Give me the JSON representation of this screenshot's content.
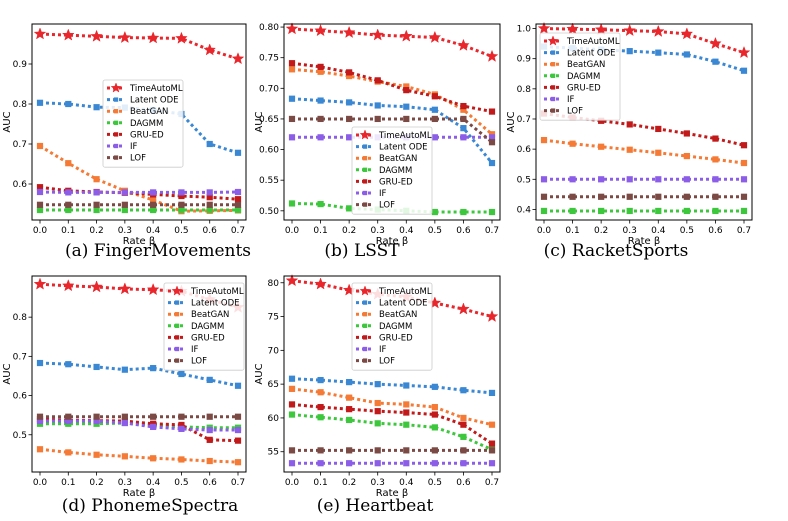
{
  "figure": {
    "x_values": [
      0.0,
      0.1,
      0.2,
      0.3,
      0.4,
      0.5,
      0.6,
      0.7
    ],
    "x_tick_labels": [
      "0.0",
      "0.1",
      "0.2",
      "0.3",
      "0.4",
      "0.5",
      "0.6",
      "0.7"
    ],
    "xlabel": "Rate β",
    "ylabel": "AUC",
    "colors": {
      "TimeAutoML": "#e8262b",
      "Latent ODE": "#3a88d4",
      "BeatGAN": "#f47a35",
      "DAGMM": "#3dc73d",
      "GRU-ED": "#c21a1a",
      "IF": "#8c5ee8",
      "LOF": "#7b4a45"
    }
  },
  "chart_data": [
    {
      "type": "line",
      "caption": "(a) FingerMovements",
      "xlabel": "Rate β",
      "ylabel": "AUC",
      "ylim": [
        0.51,
        1.0
      ],
      "yticks": [
        0.6,
        0.7,
        0.8,
        0.9
      ],
      "ytick_labels": [
        "0.6",
        "0.7",
        "0.8",
        "0.9"
      ],
      "legend": [
        "TimeAutoML",
        "Latent ODE",
        "BeatGAN",
        "DAGMM",
        "GRU-ED",
        "IF",
        "LOF"
      ],
      "legend_loc": "center",
      "series": [
        {
          "name": "TimeAutoML",
          "values": [
            0.975,
            0.972,
            0.969,
            0.966,
            0.965,
            0.964,
            0.935,
            0.913
          ]
        },
        {
          "name": "Latent ODE",
          "values": [
            0.803,
            0.8,
            0.792,
            0.791,
            0.785,
            0.775,
            0.7,
            0.678
          ]
        },
        {
          "name": "BeatGAN",
          "values": [
            0.695,
            0.652,
            0.612,
            0.583,
            0.56,
            0.532,
            0.533,
            0.534
          ]
        },
        {
          "name": "DAGMM",
          "values": [
            0.535,
            0.535,
            0.535,
            0.535,
            0.535,
            0.535,
            0.535,
            0.535
          ]
        },
        {
          "name": "GRU-ED",
          "values": [
            0.592,
            0.583,
            0.58,
            0.578,
            0.574,
            0.57,
            0.567,
            0.562
          ]
        },
        {
          "name": "IF",
          "values": [
            0.58,
            0.579,
            0.579,
            0.579,
            0.579,
            0.579,
            0.579,
            0.58
          ]
        },
        {
          "name": "LOF",
          "values": [
            0.548,
            0.548,
            0.548,
            0.548,
            0.548,
            0.548,
            0.548,
            0.548
          ]
        }
      ]
    },
    {
      "type": "line",
      "caption": "(b) LSST",
      "xlabel": "Rate β",
      "ylabel": "AUC",
      "ylim": [
        0.485,
        0.805
      ],
      "yticks": [
        0.5,
        0.55,
        0.6,
        0.65,
        0.7,
        0.75,
        0.8
      ],
      "ytick_labels": [
        "0.50",
        "0.55",
        "0.60",
        "0.65",
        "0.70",
        "0.75",
        "0.80"
      ],
      "legend": [
        "TimeAutoML",
        "Latent ODE",
        "BeatGAN",
        "DAGMM",
        "GRU-ED",
        "IF",
        "LOF"
      ],
      "legend_loc": "lower center",
      "series": [
        {
          "name": "TimeAutoML",
          "values": [
            0.797,
            0.794,
            0.791,
            0.787,
            0.785,
            0.783,
            0.77,
            0.752
          ]
        },
        {
          "name": "Latent ODE",
          "values": [
            0.683,
            0.68,
            0.677,
            0.672,
            0.67,
            0.665,
            0.635,
            0.578
          ]
        },
        {
          "name": "BeatGAN",
          "values": [
            0.731,
            0.727,
            0.72,
            0.711,
            0.703,
            0.69,
            0.665,
            0.625
          ]
        },
        {
          "name": "DAGMM",
          "values": [
            0.512,
            0.511,
            0.504,
            0.502,
            0.5,
            0.498,
            0.498,
            0.498
          ]
        },
        {
          "name": "GRU-ED",
          "values": [
            0.741,
            0.735,
            0.726,
            0.713,
            0.697,
            0.687,
            0.671,
            0.662
          ]
        },
        {
          "name": "IF",
          "values": [
            0.62,
            0.62,
            0.62,
            0.62,
            0.62,
            0.62,
            0.62,
            0.62
          ]
        },
        {
          "name": "LOF",
          "values": [
            0.65,
            0.65,
            0.65,
            0.65,
            0.65,
            0.65,
            0.65,
            0.612
          ]
        }
      ]
    },
    {
      "type": "line",
      "caption": "(c) RacketSports",
      "xlabel": "Rate β",
      "ylabel": "AUC",
      "ylim": [
        0.365,
        1.015
      ],
      "yticks": [
        0.4,
        0.5,
        0.6,
        0.7,
        0.8,
        0.9,
        1.0
      ],
      "ytick_labels": [
        "0.4",
        "0.5",
        "0.6",
        "0.7",
        "0.8",
        "0.9",
        "1.0"
      ],
      "legend": [
        "TimeAutoML",
        "Latent ODE",
        "BeatGAN",
        "DAGMM",
        "GRU-ED",
        "IF",
        "LOF"
      ],
      "legend_loc": "upper left",
      "series": [
        {
          "name": "TimeAutoML",
          "values": [
            1.0,
            0.998,
            0.996,
            0.993,
            0.99,
            0.982,
            0.95,
            0.92
          ]
        },
        {
          "name": "Latent ODE",
          "values": [
            0.94,
            0.935,
            0.93,
            0.925,
            0.92,
            0.914,
            0.89,
            0.86
          ]
        },
        {
          "name": "BeatGAN",
          "values": [
            0.63,
            0.618,
            0.608,
            0.598,
            0.588,
            0.577,
            0.566,
            0.554
          ]
        },
        {
          "name": "DAGMM",
          "values": [
            0.395,
            0.395,
            0.395,
            0.395,
            0.395,
            0.395,
            0.395,
            0.395
          ]
        },
        {
          "name": "GRU-ED",
          "values": [
            0.718,
            0.705,
            0.694,
            0.682,
            0.667,
            0.652,
            0.635,
            0.613
          ]
        },
        {
          "name": "IF",
          "values": [
            0.5,
            0.5,
            0.5,
            0.5,
            0.5,
            0.5,
            0.5,
            0.5
          ]
        },
        {
          "name": "LOF",
          "values": [
            0.442,
            0.442,
            0.442,
            0.442,
            0.442,
            0.442,
            0.442,
            0.442
          ]
        }
      ]
    },
    {
      "type": "line",
      "caption": "(d) PhonemeSpectra",
      "xlabel": "Rate β",
      "ylabel": "AUC",
      "ylim": [
        0.405,
        0.905
      ],
      "yticks": [
        0.5,
        0.6,
        0.7,
        0.8
      ],
      "ytick_labels": [
        "0.5",
        "0.6",
        "0.7",
        "0.8"
      ],
      "legend": [
        "TimeAutoML",
        "Latent ODE",
        "BeatGAN",
        "DAGMM",
        "GRU-ED",
        "IF",
        "LOF"
      ],
      "legend_loc": "right",
      "series": [
        {
          "name": "TimeAutoML",
          "values": [
            0.884,
            0.88,
            0.877,
            0.872,
            0.87,
            0.866,
            0.845,
            0.825
          ]
        },
        {
          "name": "Latent ODE",
          "values": [
            0.683,
            0.68,
            0.673,
            0.666,
            0.67,
            0.655,
            0.64,
            0.625
          ]
        },
        {
          "name": "BeatGAN",
          "values": [
            0.463,
            0.455,
            0.449,
            0.445,
            0.44,
            0.437,
            0.433,
            0.43
          ]
        },
        {
          "name": "DAGMM",
          "values": [
            0.528,
            0.528,
            0.528,
            0.53,
            0.525,
            0.52,
            0.518,
            0.518
          ]
        },
        {
          "name": "GRU-ED",
          "values": [
            0.54,
            0.537,
            0.536,
            0.535,
            0.528,
            0.525,
            0.487,
            0.485
          ]
        },
        {
          "name": "IF",
          "values": [
            0.535,
            0.535,
            0.535,
            0.53,
            0.52,
            0.515,
            0.512,
            0.512
          ]
        },
        {
          "name": "LOF",
          "values": [
            0.546,
            0.546,
            0.546,
            0.546,
            0.546,
            0.546,
            0.546,
            0.546
          ]
        }
      ]
    },
    {
      "type": "line",
      "caption": "(e) Heartbeat",
      "xlabel": "Rate β",
      "ylabel": "AUC",
      "ylim": [
        0.52,
        0.81
      ],
      "yticks": [
        0.55,
        0.6,
        0.65,
        0.7,
        0.75,
        0.8
      ],
      "ytick_labels": [
        "55",
        "60",
        "65",
        "70",
        "75",
        "80"
      ],
      "legend": [
        "TimeAutoML",
        "Latent ODE",
        "BeatGAN",
        "DAGMM",
        "GRU-ED",
        "IF",
        "LOF"
      ],
      "legend_loc": "upper right",
      "series": [
        {
          "name": "TimeAutoML",
          "values": [
            0.803,
            0.798,
            0.789,
            0.783,
            0.779,
            0.77,
            0.761,
            0.75
          ]
        },
        {
          "name": "Latent ODE",
          "values": [
            0.658,
            0.656,
            0.653,
            0.65,
            0.648,
            0.646,
            0.641,
            0.637
          ]
        },
        {
          "name": "BeatGAN",
          "values": [
            0.643,
            0.638,
            0.63,
            0.622,
            0.62,
            0.616,
            0.6,
            0.59
          ]
        },
        {
          "name": "DAGMM",
          "values": [
            0.605,
            0.601,
            0.597,
            0.592,
            0.59,
            0.586,
            0.572,
            0.553
          ]
        },
        {
          "name": "GRU-ED",
          "values": [
            0.62,
            0.616,
            0.613,
            0.61,
            0.608,
            0.605,
            0.59,
            0.562
          ]
        },
        {
          "name": "IF",
          "values": [
            0.533,
            0.533,
            0.533,
            0.533,
            0.533,
            0.533,
            0.533,
            0.533
          ]
        },
        {
          "name": "LOF",
          "values": [
            0.552,
            0.552,
            0.552,
            0.552,
            0.552,
            0.552,
            0.552,
            0.552
          ]
        }
      ]
    }
  ]
}
